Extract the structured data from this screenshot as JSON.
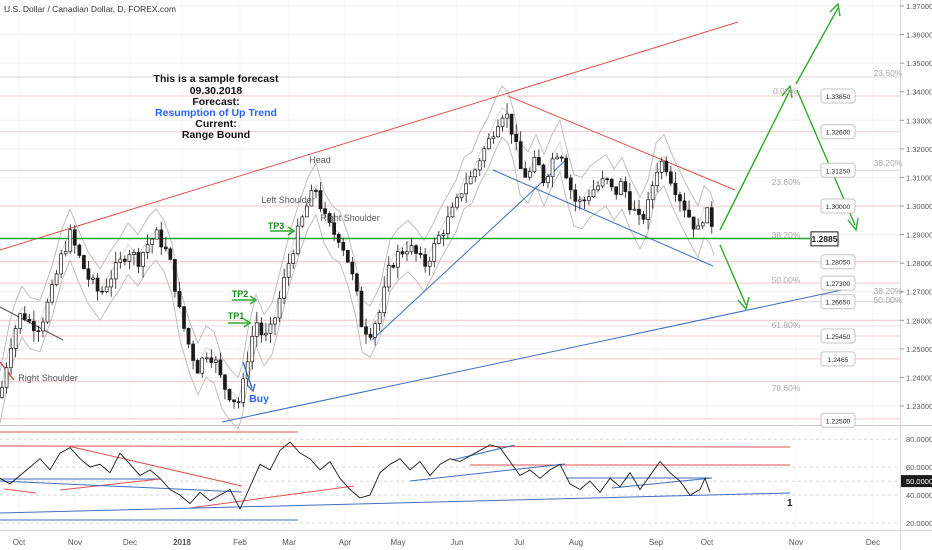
{
  "header": {
    "symbol_title": "U.S. Dollar / Canadian Dollar, D, FOREX.com"
  },
  "forecast_note": {
    "line1": "This is a sample forecast",
    "line2": "09.30.2018",
    "line3": "Forecast:",
    "line4": "Resumption of Up Trend",
    "line5": "Current:",
    "line6": "Range Bound"
  },
  "pattern_labels": {
    "head": "Head",
    "left_shoulder": "Left Shoulder",
    "right_shoulder": "Right Shoulder",
    "right_shoulder_lower": "Right Shoulder",
    "buy": "Buy",
    "tp1": "TP1",
    "tp2": "TP2",
    "tp3": "TP3",
    "rsi_marker": "1"
  },
  "fib_labels": {
    "f0": "0.00%",
    "f23_upper": "23.60%",
    "f23_inner": "23.60%",
    "f38_outer": "38.20%",
    "f38_mid": "38.20%",
    "f38_inner": "38.20%",
    "f50_outer": "50.00%",
    "f50_inner": "50.00%",
    "f61": "61.80%",
    "f78": "78.60%"
  },
  "current_price": "1.2885",
  "price_callouts": [
    "1.33850",
    "1.32600",
    "1.31250",
    "1.30000",
    "1.28050",
    "1.27300",
    "1.26650",
    "1.25450",
    "1.2465",
    "1.22500"
  ],
  "colors": {
    "up_candle": "#2c3a4a",
    "down_candle": "#1b1b1b",
    "resistance": "#e05050",
    "trendline": "#3f6fc0",
    "support": "#22a52e",
    "forecast_arrow": "#2eaa2e",
    "band": "#b8b8b8",
    "title_blue": "#2962ff",
    "fib": "#b0b0b0"
  },
  "chart_data": {
    "type": "candlestick",
    "symbol": "U.S. Dollar / Canadian Dollar, D, FOREX.com",
    "x_ticks": [
      "Oct",
      "Nov",
      "Dec",
      "2018",
      "Feb",
      "Mar",
      "Apr",
      "May",
      "Jun",
      "Jul",
      "Aug",
      "Sep",
      "Oct",
      "Nov",
      "Dec"
    ],
    "y_ticks": [
      "1.37000",
      "1.36000",
      "1.35000",
      "1.34000",
      "1.33000",
      "1.32000",
      "1.31000",
      "1.30000",
      "1.29000",
      "1.28000",
      "1.27000",
      "1.26000",
      "1.25000",
      "1.24000",
      "1.23000"
    ],
    "ylim": [
      1.225,
      1.372
    ],
    "price_path": [
      [
        0,
        1.233
      ],
      [
        4,
        1.24
      ],
      [
        10,
        1.251
      ],
      [
        16,
        1.258
      ],
      [
        22,
        1.263
      ],
      [
        30,
        1.259
      ],
      [
        40,
        1.258
      ],
      [
        52,
        1.27
      ],
      [
        62,
        1.283
      ],
      [
        70,
        1.29
      ],
      [
        78,
        1.283
      ],
      [
        88,
        1.275
      ],
      [
        100,
        1.269
      ],
      [
        110,
        1.275
      ],
      [
        120,
        1.28
      ],
      [
        128,
        1.285
      ],
      [
        138,
        1.281
      ],
      [
        148,
        1.287
      ],
      [
        156,
        1.29
      ],
      [
        164,
        1.286
      ],
      [
        172,
        1.278
      ],
      [
        180,
        1.262
      ],
      [
        190,
        1.25
      ],
      [
        198,
        1.243
      ],
      [
        206,
        1.249
      ],
      [
        214,
        1.247
      ],
      [
        222,
        1.238
      ],
      [
        230,
        1.234
      ],
      [
        238,
        1.231
      ],
      [
        242,
        1.235
      ],
      [
        248,
        1.248
      ],
      [
        256,
        1.26
      ],
      [
        264,
        1.253
      ],
      [
        272,
        1.257
      ],
      [
        280,
        1.268
      ],
      [
        290,
        1.282
      ],
      [
        300,
        1.293
      ],
      [
        308,
        1.301
      ],
      [
        316,
        1.306
      ],
      [
        324,
        1.296
      ],
      [
        332,
        1.291
      ],
      [
        340,
        1.289
      ],
      [
        348,
        1.281
      ],
      [
        356,
        1.27
      ],
      [
        362,
        1.258
      ],
      [
        370,
        1.256
      ],
      [
        380,
        1.263
      ],
      [
        390,
        1.279
      ],
      [
        398,
        1.283
      ],
      [
        408,
        1.286
      ],
      [
        416,
        1.283
      ],
      [
        424,
        1.279
      ],
      [
        432,
        1.284
      ],
      [
        440,
        1.29
      ],
      [
        448,
        1.295
      ],
      [
        456,
        1.3
      ],
      [
        464,
        1.308
      ],
      [
        472,
        1.31
      ],
      [
        480,
        1.317
      ],
      [
        488,
        1.322
      ],
      [
        496,
        1.329
      ],
      [
        502,
        1.333
      ],
      [
        508,
        1.331
      ],
      [
        514,
        1.324
      ],
      [
        520,
        1.313
      ],
      [
        528,
        1.31
      ],
      [
        536,
        1.316
      ],
      [
        544,
        1.309
      ],
      [
        552,
        1.316
      ],
      [
        560,
        1.321
      ],
      [
        566,
        1.312
      ],
      [
        574,
        1.302
      ],
      [
        582,
        1.301
      ],
      [
        590,
        1.305
      ],
      [
        598,
        1.307
      ],
      [
        606,
        1.309
      ],
      [
        614,
        1.304
      ],
      [
        622,
        1.308
      ],
      [
        630,
        1.301
      ],
      [
        640,
        1.294
      ],
      [
        648,
        1.3
      ],
      [
        656,
        1.313
      ],
      [
        664,
        1.316
      ],
      [
        672,
        1.309
      ],
      [
        680,
        1.303
      ],
      [
        690,
        1.296
      ],
      [
        698,
        1.291
      ],
      [
        704,
        1.298
      ],
      [
        710,
        1.296
      ],
      [
        714,
        1.292
      ]
    ],
    "levels": [
      {
        "price": 1.3385,
        "label": "1.33850",
        "fib": "0.00%"
      },
      {
        "price": 1.326,
        "label": "1.32600"
      },
      {
        "price": 1.3125,
        "label": "1.31250",
        "fib": "38.20%"
      },
      {
        "price": 1.3,
        "label": "1.30000"
      },
      {
        "price": 1.2885,
        "label": "1.2885",
        "fib": "38.20%",
        "current": true
      },
      {
        "price": 1.2805,
        "label": "1.28050"
      },
      {
        "price": 1.273,
        "label": "1.27300",
        "fib": "50.00%"
      },
      {
        "price": 1.2665,
        "label": "1.26650",
        "fib": "38.20%"
      },
      {
        "price": 1.2545,
        "label": "1.25450",
        "fib": "61.80%"
      },
      {
        "price": 1.2465,
        "label": "1.2465"
      },
      {
        "price": 1.225,
        "label": "1.22500"
      }
    ],
    "rsi": {
      "y_ticks": [
        "80.0000",
        "60.0000",
        "50.0000",
        "40.0000",
        "20.0000"
      ],
      "current": "50.0000",
      "ylim": [
        15,
        88
      ],
      "values": [
        [
          0,
          52
        ],
        [
          10,
          48
        ],
        [
          20,
          54
        ],
        [
          30,
          60
        ],
        [
          40,
          66
        ],
        [
          50,
          58
        ],
        [
          60,
          70
        ],
        [
          70,
          74
        ],
        [
          80,
          66
        ],
        [
          90,
          60
        ],
        [
          100,
          62
        ],
        [
          110,
          56
        ],
        [
          120,
          70
        ],
        [
          130,
          62
        ],
        [
          140,
          54
        ],
        [
          150,
          58
        ],
        [
          160,
          52
        ],
        [
          170,
          44
        ],
        [
          180,
          40
        ],
        [
          190,
          34
        ],
        [
          200,
          42
        ],
        [
          210,
          36
        ],
        [
          220,
          40
        ],
        [
          230,
          44
        ],
        [
          240,
          30
        ],
        [
          250,
          46
        ],
        [
          260,
          62
        ],
        [
          270,
          58
        ],
        [
          280,
          72
        ],
        [
          290,
          78
        ],
        [
          300,
          70
        ],
        [
          310,
          66
        ],
        [
          320,
          58
        ],
        [
          330,
          64
        ],
        [
          340,
          52
        ],
        [
          350,
          44
        ],
        [
          360,
          38
        ],
        [
          370,
          40
        ],
        [
          380,
          56
        ],
        [
          390,
          62
        ],
        [
          400,
          66
        ],
        [
          410,
          58
        ],
        [
          420,
          64
        ],
        [
          430,
          54
        ],
        [
          440,
          62
        ],
        [
          450,
          66
        ],
        [
          460,
          64
        ],
        [
          470,
          68
        ],
        [
          480,
          72
        ],
        [
          490,
          76
        ],
        [
          500,
          74
        ],
        [
          510,
          64
        ],
        [
          520,
          54
        ],
        [
          530,
          58
        ],
        [
          540,
          52
        ],
        [
          550,
          58
        ],
        [
          560,
          62
        ],
        [
          570,
          48
        ],
        [
          580,
          44
        ],
        [
          590,
          50
        ],
        [
          600,
          42
        ],
        [
          610,
          52
        ],
        [
          620,
          46
        ],
        [
          630,
          56
        ],
        [
          640,
          44
        ],
        [
          650,
          54
        ],
        [
          660,
          64
        ],
        [
          670,
          56
        ],
        [
          680,
          50
        ],
        [
          690,
          40
        ],
        [
          700,
          44
        ],
        [
          705,
          52
        ],
        [
          710,
          42
        ]
      ]
    }
  }
}
